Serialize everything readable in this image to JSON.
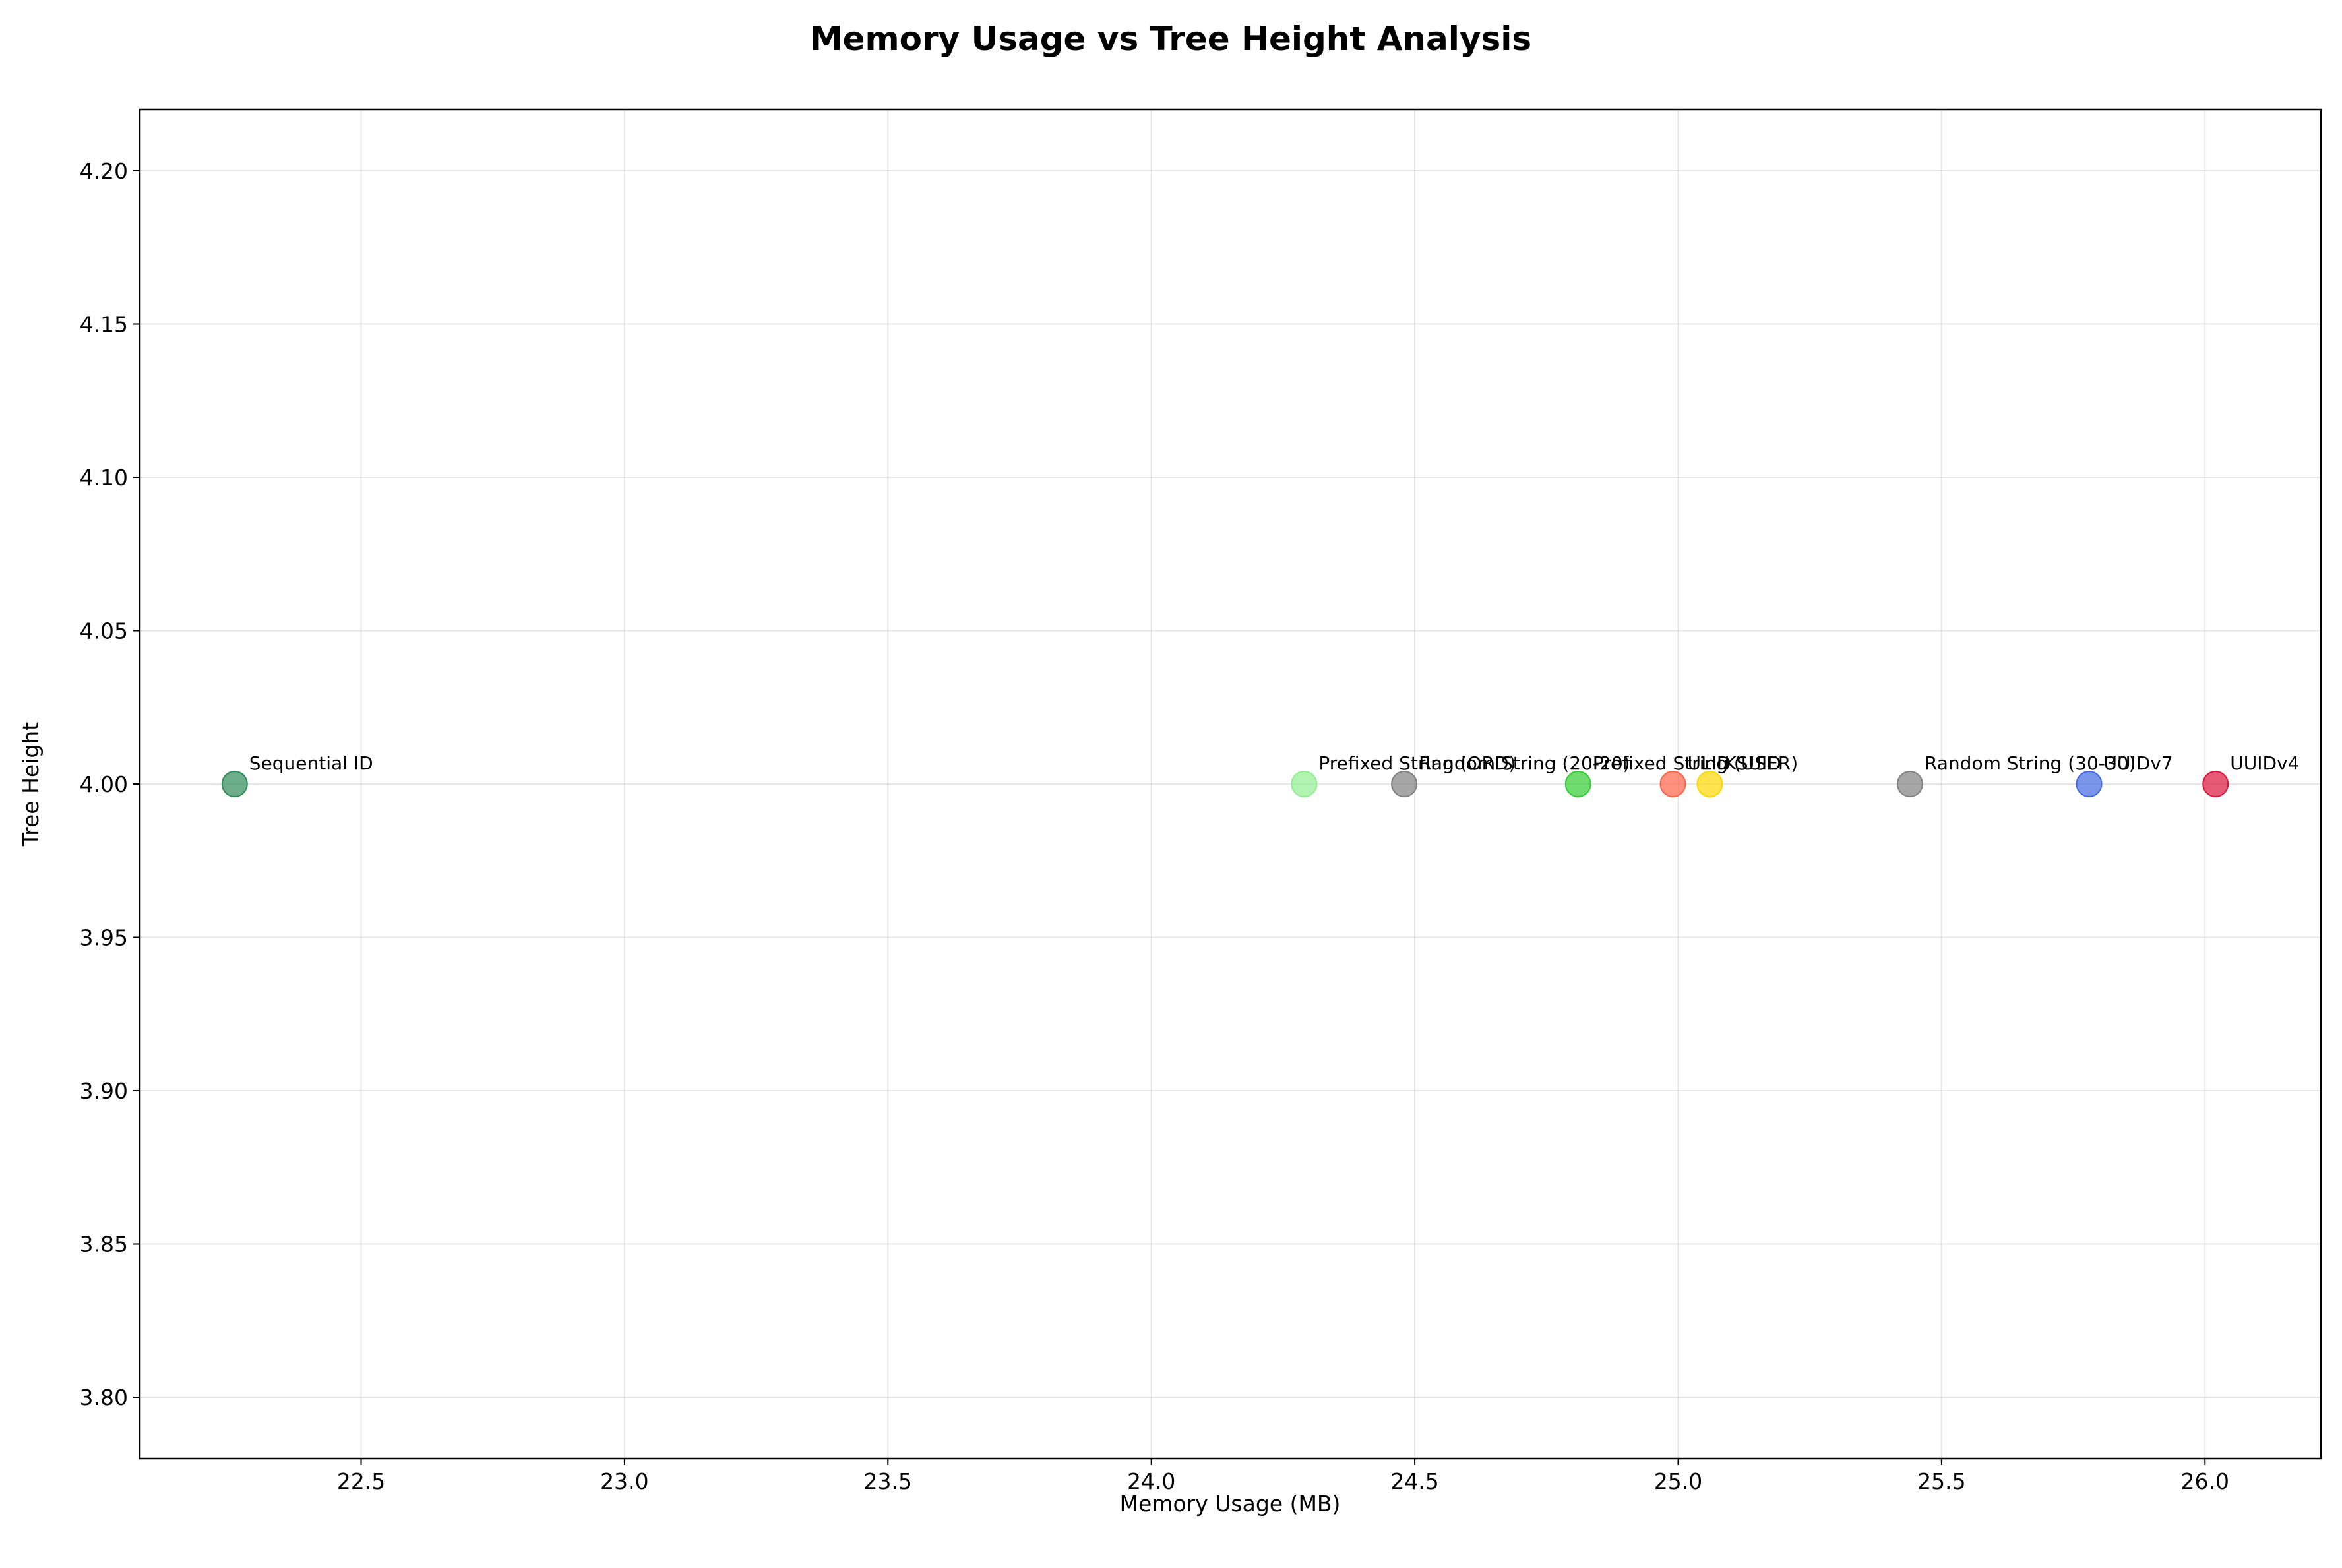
{
  "chart_data": {
    "type": "scatter",
    "title": "Memory Usage vs Tree Height Analysis",
    "xlabel": "Memory Usage (MB)",
    "ylabel": "Tree Height",
    "xlim": [
      22.08,
      26.22
    ],
    "ylim": [
      3.78,
      4.22
    ],
    "xticks": [
      22.5,
      23.0,
      23.5,
      24.0,
      24.5,
      25.0,
      25.5,
      26.0
    ],
    "yticks": [
      3.8,
      3.85,
      3.9,
      3.95,
      4.0,
      4.05,
      4.1,
      4.15,
      4.2
    ],
    "xtick_labels": [
      "22.5",
      "23.0",
      "23.5",
      "24.0",
      "24.5",
      "25.0",
      "25.5",
      "26.0"
    ],
    "ytick_labels": [
      "3.80",
      "3.85",
      "3.90",
      "3.95",
      "4.00",
      "4.05",
      "4.10",
      "4.15",
      "4.20"
    ],
    "grid": true,
    "points": [
      {
        "label": "Sequential ID",
        "x": 22.26,
        "y": 4.0,
        "color": "#2e8b57"
      },
      {
        "label": "Prefixed String (ORD)",
        "x": 24.29,
        "y": 4.0,
        "color": "#90ee90"
      },
      {
        "label": "Random String (20-20)",
        "x": 24.48,
        "y": 4.0,
        "color": "#808080"
      },
      {
        "label": "Prefixed String (USER)",
        "x": 24.81,
        "y": 4.0,
        "color": "#32cd32"
      },
      {
        "label": "ULID",
        "x": 24.99,
        "y": 4.0,
        "color": "#ff6347"
      },
      {
        "label": "KSUID",
        "x": 25.06,
        "y": 4.0,
        "color": "#ffd700"
      },
      {
        "label": "Random String (30-30)",
        "x": 25.44,
        "y": 4.0,
        "color": "#808080"
      },
      {
        "label": "UUIDv7",
        "x": 25.78,
        "y": 4.0,
        "color": "#4169e1"
      },
      {
        "label": "UUIDv4",
        "x": 26.02,
        "y": 4.0,
        "color": "#dc143c"
      }
    ]
  }
}
